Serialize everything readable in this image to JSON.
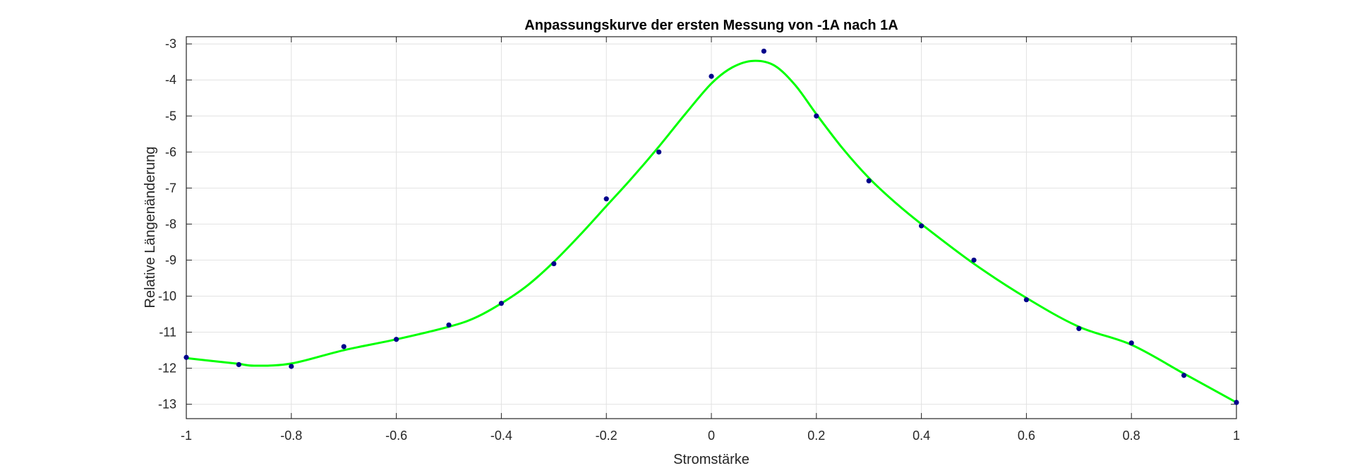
{
  "chart_data": {
    "type": "scatter",
    "title": "Anpassungskurve der ersten Messung von -1A nach 1A",
    "xlabel": "Stromstärke",
    "ylabel": "Relative Längenänderung",
    "xlim": [
      -1,
      1
    ],
    "ylim": [
      -13.4,
      -2.8
    ],
    "xticks": [
      -1,
      -0.8,
      -0.6,
      -0.4,
      -0.2,
      0,
      0.2,
      0.4,
      0.6,
      0.8,
      1
    ],
    "xtick_labels": [
      "-1",
      "-0.8",
      "-0.6",
      "-0.4",
      "-0.2",
      "0",
      "0.2",
      "0.4",
      "0.6",
      "0.8",
      "1"
    ],
    "yticks": [
      -3,
      -4,
      -5,
      -6,
      -7,
      -8,
      -9,
      -10,
      -11,
      -12,
      -13
    ],
    "ytick_labels": [
      "-3",
      "-4",
      "-5",
      "-6",
      "-7",
      "-8",
      "-9",
      "-10",
      "-11",
      "-12",
      "-13"
    ],
    "grid": true,
    "series": [
      {
        "kind": "points",
        "color": "#00008b",
        "x": [
          -1,
          -0.9,
          -0.8,
          -0.7,
          -0.6,
          -0.5,
          -0.4,
          -0.3,
          -0.2,
          -0.1,
          0,
          0.1,
          0.2,
          0.3,
          0.4,
          0.5,
          0.6,
          0.7,
          0.8,
          0.9,
          1
        ],
        "y": [
          -11.7,
          -11.9,
          -11.95,
          -11.4,
          -11.2,
          -10.8,
          -10.2,
          -9.1,
          -7.3,
          -6.0,
          -3.9,
          -3.2,
          -5.0,
          -6.8,
          -8.05,
          -9.0,
          -10.1,
          -10.9,
          -11.3,
          -12.2,
          -12.95
        ]
      },
      {
        "kind": "fit-curve",
        "color": "#00ff00",
        "x": [
          -1,
          -0.95,
          -0.9,
          -0.87,
          -0.8,
          -0.7,
          -0.6,
          -0.5,
          -0.45,
          -0.4,
          -0.35,
          -0.3,
          -0.25,
          -0.2,
          -0.15,
          -0.1,
          -0.05,
          0,
          0.04,
          0.08,
          0.12,
          0.16,
          0.2,
          0.25,
          0.3,
          0.35,
          0.4,
          0.5,
          0.6,
          0.7,
          0.8,
          0.9,
          1
        ],
        "y": [
          -11.72,
          -11.8,
          -11.88,
          -11.93,
          -11.87,
          -11.5,
          -11.2,
          -10.85,
          -10.6,
          -10.2,
          -9.7,
          -9.05,
          -8.3,
          -7.5,
          -6.7,
          -5.85,
          -4.95,
          -4.1,
          -3.65,
          -3.47,
          -3.6,
          -4.15,
          -4.95,
          -5.9,
          -6.72,
          -7.4,
          -8.0,
          -9.1,
          -10.05,
          -10.85,
          -11.35,
          -12.15,
          -12.95
        ]
      }
    ]
  }
}
